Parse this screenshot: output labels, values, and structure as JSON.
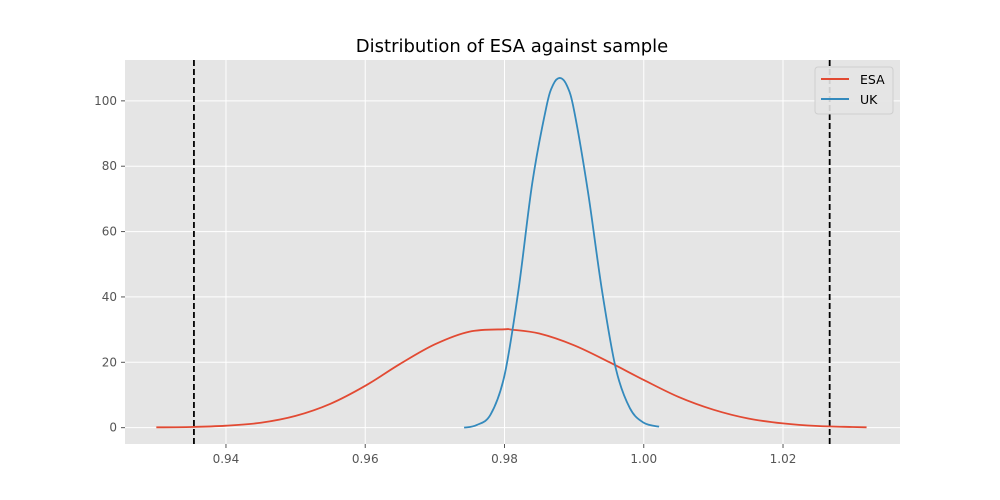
{
  "chart_data": {
    "type": "line",
    "title": "Distribution of ESA against sample",
    "xlabel": "",
    "ylabel": "",
    "xlim": [
      0.9255,
      1.0368
    ],
    "ylim": [
      -5.0,
      112.5
    ],
    "grid": true,
    "legend_placement": "top-right",
    "x_ticks": [
      0.94,
      0.96,
      0.98,
      1.0,
      1.02
    ],
    "x_tick_labels": [
      "0.94",
      "0.96",
      "0.98",
      "1.00",
      "1.02"
    ],
    "y_ticks": [
      0,
      20,
      40,
      60,
      80,
      100
    ],
    "y_tick_labels": [
      "0",
      "20",
      "40",
      "60",
      "80",
      "100"
    ],
    "series": [
      {
        "name": "ESA",
        "color": "#E24A33",
        "x": [
          0.93,
          0.935,
          0.94,
          0.945,
          0.95,
          0.955,
          0.96,
          0.965,
          0.97,
          0.975,
          0.98,
          0.981,
          0.985,
          0.99,
          0.995,
          1.0,
          1.005,
          1.01,
          1.015,
          1.02,
          1.025,
          1.03,
          1.032
        ],
        "values": [
          0.1,
          0.2,
          0.6,
          1.5,
          3.6,
          7.3,
          12.8,
          19.5,
          25.5,
          29.4,
          30.1,
          30.0,
          28.8,
          25.2,
          20.1,
          14.6,
          9.4,
          5.5,
          2.8,
          1.3,
          0.5,
          0.2,
          0.1
        ]
      },
      {
        "name": "UK",
        "color": "#348ABD",
        "x": [
          0.9742,
          0.976,
          0.978,
          0.98,
          0.982,
          0.984,
          0.986,
          0.987,
          0.988,
          0.989,
          0.99,
          0.992,
          0.994,
          0.996,
          0.998,
          1.0,
          1.0022
        ],
        "values": [
          0.0,
          0.8,
          4.0,
          16.0,
          42.0,
          75.0,
          98.0,
          105.0,
          107.0,
          104.5,
          97.0,
          72.0,
          42.0,
          18.0,
          6.0,
          1.5,
          0.3
        ]
      }
    ],
    "vlines": [
      {
        "x": 0.9354,
        "color": "#000000",
        "style": "dashed"
      },
      {
        "x": 1.0267,
        "color": "#000000",
        "style": "dashed"
      }
    ]
  }
}
